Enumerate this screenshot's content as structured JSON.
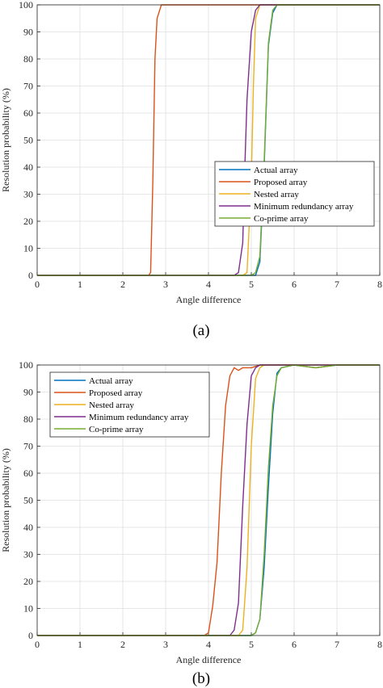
{
  "chart_data": [
    {
      "type": "line",
      "panel_label": "(a)",
      "xlabel": "Angle difference",
      "ylabel": "Resolution probability (%)",
      "xlim": [
        0,
        8
      ],
      "ylim": [
        0,
        100
      ],
      "xticks": [
        "0",
        "1",
        "2",
        "3",
        "4",
        "5",
        "6",
        "7",
        "8"
      ],
      "yticks": [
        "0",
        "10",
        "20",
        "30",
        "40",
        "50",
        "60",
        "70",
        "80",
        "90",
        "100"
      ],
      "grid": true,
      "legend_position": "center-right",
      "series": [
        {
          "name": "Actual array",
          "color": "#0072BD",
          "x": [
            0,
            5.0,
            5.1,
            5.2,
            5.3,
            5.4,
            5.5,
            5.6,
            5.7,
            8
          ],
          "y": [
            0,
            0,
            0,
            5,
            40,
            85,
            97,
            100,
            100,
            100
          ]
        },
        {
          "name": "Proposed array",
          "color": "#D95319",
          "x": [
            0,
            2.6,
            2.65,
            2.7,
            2.75,
            2.8,
            2.9,
            3.0,
            8
          ],
          "y": [
            0,
            0,
            1,
            34,
            80,
            95,
            100,
            100,
            100
          ]
        },
        {
          "name": "Nested array",
          "color": "#EDB120",
          "x": [
            0,
            4.8,
            4.9,
            5.0,
            5.05,
            5.1,
            5.2,
            5.3,
            8
          ],
          "y": [
            0,
            0,
            1,
            35,
            70,
            95,
            100,
            100,
            100
          ]
        },
        {
          "name": "Minimum redundancy array",
          "color": "#7E2F8E",
          "x": [
            0,
            4.6,
            4.7,
            4.8,
            4.85,
            4.9,
            5.0,
            5.1,
            5.2,
            8
          ],
          "y": [
            0,
            0,
            1,
            12,
            40,
            65,
            90,
            98,
            100,
            100
          ]
        },
        {
          "name": "Co-prime array",
          "color": "#77AC30",
          "x": [
            0,
            5.0,
            5.1,
            5.2,
            5.3,
            5.4,
            5.5,
            5.6,
            5.7,
            8
          ],
          "y": [
            0,
            0,
            1,
            7,
            42,
            86,
            98,
            100,
            100,
            100
          ]
        }
      ]
    },
    {
      "type": "line",
      "panel_label": "(b)",
      "xlabel": "Angle difference",
      "ylabel": "Resolution probability (%)",
      "xlim": [
        0,
        8
      ],
      "ylim": [
        0,
        100
      ],
      "xticks": [
        "0",
        "1",
        "2",
        "3",
        "4",
        "5",
        "6",
        "7",
        "8"
      ],
      "yticks": [
        "0",
        "10",
        "20",
        "30",
        "40",
        "50",
        "60",
        "70",
        "80",
        "90",
        "100"
      ],
      "grid": true,
      "legend_position": "top-left",
      "series": [
        {
          "name": "Actual array",
          "color": "#0072BD",
          "x": [
            0,
            5.0,
            5.1,
            5.2,
            5.3,
            5.4,
            5.5,
            5.6,
            5.7,
            6.0,
            6.5,
            7.0,
            7.5,
            8
          ],
          "y": [
            0,
            0,
            1,
            6,
            25,
            55,
            82,
            97,
            99,
            100,
            99,
            100,
            100,
            100
          ]
        },
        {
          "name": "Proposed array",
          "color": "#D95319",
          "x": [
            0,
            3.9,
            4.0,
            4.1,
            4.2,
            4.3,
            4.4,
            4.5,
            4.6,
            4.7,
            4.8,
            5.0,
            5.2,
            5.5,
            6.0,
            6.5,
            7.0,
            7.5,
            8
          ],
          "y": [
            0,
            0,
            1,
            11,
            27,
            60,
            85,
            96,
            99,
            98,
            99,
            99,
            100,
            100,
            100,
            99,
            100,
            100,
            100
          ]
        },
        {
          "name": "Nested array",
          "color": "#EDB120",
          "x": [
            0,
            4.7,
            4.8,
            4.9,
            5.0,
            5.1,
            5.2,
            5.3,
            8
          ],
          "y": [
            0,
            0,
            2,
            25,
            70,
            95,
            99,
            100,
            100
          ]
        },
        {
          "name": "Minimum redundancy array",
          "color": "#7E2F8E",
          "x": [
            0,
            4.5,
            4.6,
            4.7,
            4.8,
            4.9,
            5.0,
            5.1,
            5.2,
            8
          ],
          "y": [
            0,
            0,
            2,
            12,
            48,
            78,
            96,
            99,
            100,
            100
          ]
        },
        {
          "name": "Co-prime array",
          "color": "#77AC30",
          "x": [
            0,
            5.0,
            5.1,
            5.2,
            5.3,
            5.4,
            5.5,
            5.6,
            5.7,
            6.0,
            6.5,
            7.0,
            7.5,
            8
          ],
          "y": [
            0,
            0,
            1,
            6,
            30,
            62,
            85,
            96,
            99,
            100,
            99,
            100,
            100,
            100
          ]
        }
      ]
    }
  ]
}
